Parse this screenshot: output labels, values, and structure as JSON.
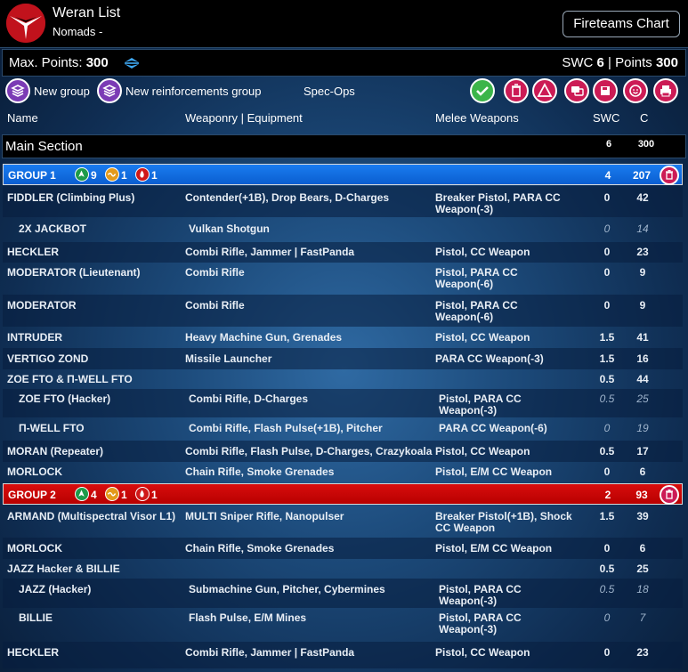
{
  "header": {
    "title": "Weran List",
    "subtitle": "Nomads -",
    "fireteams_button": "Fireteams Chart"
  },
  "points": {
    "max_label": "Max. Points:",
    "max_value": "300",
    "swc_label": "SWC",
    "swc_value": "6",
    "sep": "|",
    "points_label": "Points",
    "points_value": "300"
  },
  "toolbar": {
    "new_group": "New group",
    "new_reinforcements": "New reinforcements group",
    "spec_ops": "Spec-Ops"
  },
  "columns": {
    "name": "Name",
    "weaponry": "Weaponry | Equipment",
    "melee": "Melee Weapons",
    "swc": "SWC",
    "c": "C"
  },
  "main_section": {
    "title": "Main Section",
    "swc": "6",
    "c": "300"
  },
  "group1": {
    "name": "GROUP 1",
    "regular": "9",
    "irregular": "1",
    "impetuous": "1",
    "swc": "4",
    "c": "207"
  },
  "group2": {
    "name": "GROUP 2",
    "regular": "4",
    "irregular": "1",
    "impetuous": "1",
    "swc": "2",
    "c": "93"
  },
  "rows": [
    {
      "name": "FIDDLER (Climbing Plus)",
      "weap": "Contender(+1B), Drop Bears, D-Charges",
      "melee": "Breaker Pistol, PARA CC Weapon(-3)",
      "swc": "0",
      "c": "42"
    },
    {
      "name": "2X JACKBOT",
      "weap": "Vulkan Shotgun",
      "melee": "",
      "swc": "0",
      "c": "14"
    },
    {
      "name": "HECKLER",
      "weap": "Combi Rifle, Jammer | FastPanda",
      "melee": "Pistol, CC Weapon",
      "swc": "0",
      "c": "23"
    },
    {
      "name": "MODERATOR (Lieutenant)",
      "weap": "Combi Rifle",
      "melee": "Pistol, PARA CC Weapon(-6)",
      "swc": "0",
      "c": "9"
    },
    {
      "name": "MODERATOR",
      "weap": "Combi Rifle",
      "melee": "Pistol, PARA CC Weapon(-6)",
      "swc": "0",
      "c": "9"
    },
    {
      "name": "INTRUDER",
      "weap": "Heavy Machine Gun, Grenades",
      "melee": "Pistol, CC Weapon",
      "swc": "1.5",
      "c": "41"
    },
    {
      "name": "VERTIGO ZOND",
      "weap": "Missile Launcher",
      "melee": "PARA CC Weapon(-3)",
      "swc": "1.5",
      "c": "16"
    },
    {
      "name": "ZOE FTO & Π-WELL FTO",
      "weap": "",
      "melee": "",
      "swc": "0.5",
      "c": "44"
    },
    {
      "name": "ZOE FTO (Hacker)",
      "weap": "Combi Rifle, D-Charges",
      "melee": "Pistol, PARA CC Weapon(-3)",
      "swc": "0.5",
      "c": "25"
    },
    {
      "name": "Π-WELL FTO",
      "weap": "Combi Rifle, Flash Pulse(+1B), Pitcher",
      "melee": "PARA CC Weapon(-6)",
      "swc": "0",
      "c": "19"
    },
    {
      "name": "MORAN (Repeater)",
      "weap": "Combi Rifle, Flash Pulse, D-Charges, Crazykoala",
      "melee": "Pistol, CC Weapon",
      "swc": "0.5",
      "c": "17"
    },
    {
      "name": "MORLOCK",
      "weap": "Chain Rifle, Smoke Grenades",
      "melee": "Pistol, E/M CC Weapon",
      "swc": "0",
      "c": "6"
    },
    {
      "name": "ARMAND (Multispectral Visor L1)",
      "weap": "MULTI Sniper Rifle, Nanopulser",
      "melee": "Breaker Pistol(+1B), Shock CC Weapon",
      "swc": "1.5",
      "c": "39"
    },
    {
      "name": "MORLOCK",
      "weap": "Chain Rifle, Smoke Grenades",
      "melee": "Pistol, E/M CC Weapon",
      "swc": "0",
      "c": "6"
    },
    {
      "name": "JAZZ Hacker & BILLIE",
      "weap": "",
      "melee": "",
      "swc": "0.5",
      "c": "25"
    },
    {
      "name": "JAZZ (Hacker)",
      "weap": "Submachine Gun, Pitcher, Cybermines",
      "melee": "Pistol, PARA CC Weapon(-3)",
      "swc": "0.5",
      "c": "18"
    },
    {
      "name": "BILLIE",
      "weap": "Flash Pulse, E/M Mines",
      "melee": "Pistol, PARA CC Weapon(-3)",
      "swc": "0",
      "c": "7"
    },
    {
      "name": "HECKLER",
      "weap": "Combi Rifle, Jammer | FastPanda",
      "melee": "Pistol, CC Weapon",
      "swc": "0",
      "c": "23"
    }
  ],
  "icons": {
    "logo": "nomads-logo",
    "accent_green": "#3cb54a",
    "accent_red": "#cc1b55",
    "group1_color": "#1a7cf0",
    "group2_color": "#d80d0d"
  }
}
